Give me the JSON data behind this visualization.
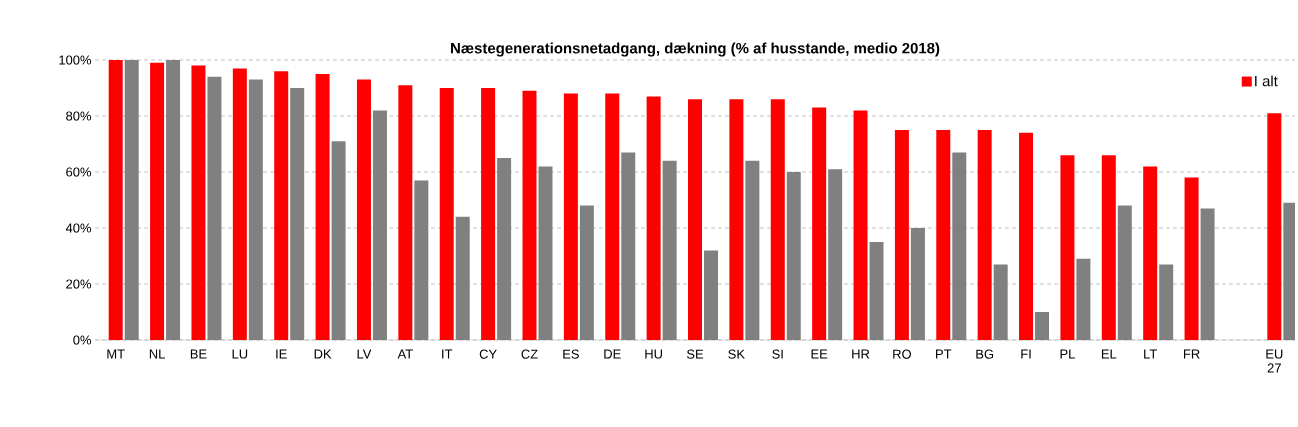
{
  "chart_data": {
    "type": "bar",
    "title": "Næstegenerationsnetadgang, dækning (% af husstande, medio 2018)",
    "categories": [
      "MT",
      "NL",
      "BE",
      "LU",
      "IE",
      "DK",
      "LV",
      "AT",
      "IT",
      "CY",
      "CZ",
      "ES",
      "DE",
      "HU",
      "SE",
      "SK",
      "SI",
      "EE",
      "HR",
      "RO",
      "PT",
      "BG",
      "FI",
      "PL",
      "EL",
      "LT",
      "FR",
      null,
      "EU 27"
    ],
    "series": [
      {
        "name": "I alt",
        "color": "#ff0000",
        "values": [
          100,
          99,
          98,
          97,
          96,
          95,
          93,
          91,
          90,
          90,
          89,
          88,
          88,
          87,
          86,
          86,
          86,
          83,
          82,
          75,
          75,
          75,
          74,
          66,
          66,
          62,
          58,
          null,
          81
        ]
      },
      {
        "color": "#808080",
        "values": [
          100,
          100,
          94,
          93,
          90,
          71,
          82,
          57,
          44,
          65,
          62,
          48,
          67,
          64,
          32,
          64,
          60,
          61,
          35,
          40,
          67,
          27,
          10,
          29,
          48,
          27,
          47,
          null,
          49
        ]
      }
    ],
    "ylim": [
      0,
      100
    ],
    "yticks": [
      {
        "value": 0,
        "label": "0%"
      },
      {
        "value": 20,
        "label": "20%"
      },
      {
        "value": 40,
        "label": "40%"
      },
      {
        "value": 60,
        "label": "60%"
      },
      {
        "value": 80,
        "label": "80%"
      },
      {
        "value": 100,
        "label": "100%"
      }
    ],
    "grid": "y",
    "legend": "top right"
  }
}
